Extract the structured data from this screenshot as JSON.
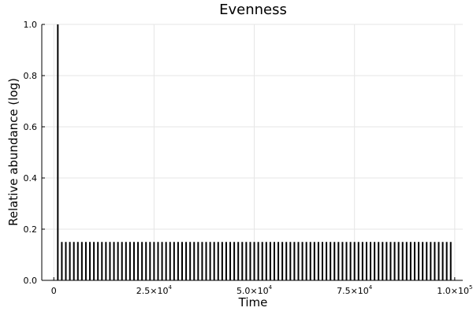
{
  "chart_data": {
    "type": "bar",
    "title": "Evenness",
    "xlabel": "Time",
    "ylabel": "Relative abundance (log)",
    "xlim": [
      -3000,
      102000
    ],
    "ylim": [
      0,
      1
    ],
    "grid": true,
    "x_ticks": [
      {
        "value": 0,
        "label": "0",
        "exp": ""
      },
      {
        "value": 25000,
        "label": "2.5×10",
        "exp": "4"
      },
      {
        "value": 50000,
        "label": "5.0×10",
        "exp": "4"
      },
      {
        "value": 75000,
        "label": "7.5×10",
        "exp": "4"
      },
      {
        "value": 100000,
        "label": "1.0×10",
        "exp": "5"
      }
    ],
    "y_ticks": [
      {
        "value": 0.0,
        "label": "0.0"
      },
      {
        "value": 0.2,
        "label": "0.2"
      },
      {
        "value": 0.4,
        "label": "0.4"
      },
      {
        "value": 0.6,
        "label": "0.6"
      },
      {
        "value": 0.8,
        "label": "0.8"
      },
      {
        "value": 1.0,
        "label": "1.0"
      }
    ],
    "series": [
      {
        "spikes": [
          {
            "x": 1000,
            "y": 1.0
          }
        ],
        "regular_spikes": {
          "start": 1000,
          "step": 1000,
          "count": 99,
          "y": 0.15
        }
      }
    ]
  }
}
